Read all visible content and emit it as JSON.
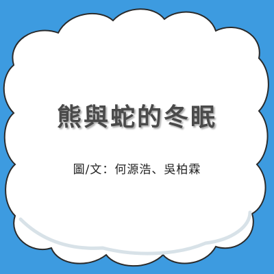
{
  "colors": {
    "background": "#3d9be0",
    "cloud_fill": "#ffffff",
    "cloud_outline": "#2a2a2a",
    "cloud_shadow": "#e8eef2",
    "title_color": "#4a4a4a",
    "credit_color": "#222222"
  },
  "title": "熊與蛇的冬眠",
  "credit": "圖/文：何源浩、吳柏霖"
}
